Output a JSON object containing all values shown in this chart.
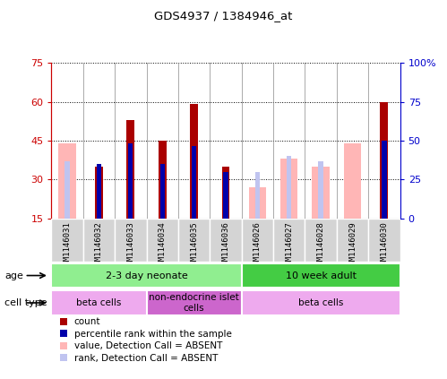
{
  "title": "GDS4937 / 1384946_at",
  "samples": [
    "GSM1146031",
    "GSM1146032",
    "GSM1146033",
    "GSM1146034",
    "GSM1146035",
    "GSM1146036",
    "GSM1146026",
    "GSM1146027",
    "GSM1146028",
    "GSM1146029",
    "GSM1146030"
  ],
  "count_values": [
    null,
    35,
    53,
    45,
    59,
    35,
    null,
    null,
    null,
    null,
    60
  ],
  "rank_values": [
    null,
    36,
    44,
    36,
    43,
    33,
    null,
    null,
    null,
    null,
    45
  ],
  "absent_value": [
    44,
    null,
    null,
    null,
    null,
    null,
    27,
    38,
    35,
    44,
    null
  ],
  "absent_rank": [
    37,
    null,
    null,
    null,
    null,
    null,
    33,
    39,
    37,
    null,
    null
  ],
  "left_ylim": [
    15,
    75
  ],
  "right_ylim": [
    0,
    100
  ],
  "left_yticks": [
    15,
    30,
    45,
    60,
    75
  ],
  "right_yticks": [
    0,
    25,
    50,
    75,
    100
  ],
  "right_yticklabels": [
    "0",
    "25",
    "50",
    "75",
    "100%"
  ],
  "left_tick_color": "#cc0000",
  "right_tick_color": "#0000cc",
  "age_groups": [
    {
      "label": "2-3 day neonate",
      "start": 0,
      "end": 6,
      "color": "#90ee90"
    },
    {
      "label": "10 week adult",
      "start": 6,
      "end": 11,
      "color": "#44cc44"
    }
  ],
  "cell_groups": [
    {
      "label": "beta cells",
      "start": 0,
      "end": 3,
      "color": "#eeaaee"
    },
    {
      "label": "non-endocrine islet\ncells",
      "start": 3,
      "end": 6,
      "color": "#cc66cc"
    },
    {
      "label": "beta cells",
      "start": 6,
      "end": 11,
      "color": "#eeaaee"
    }
  ],
  "count_color": "#aa0000",
  "rank_color": "#0000aa",
  "absent_val_color": "#ffb6b6",
  "absent_rank_color": "#c0c4f0",
  "bg_color": "#ffffff",
  "plot_bg": "#ffffff",
  "xticklabel_bg": "#d4d4d4"
}
